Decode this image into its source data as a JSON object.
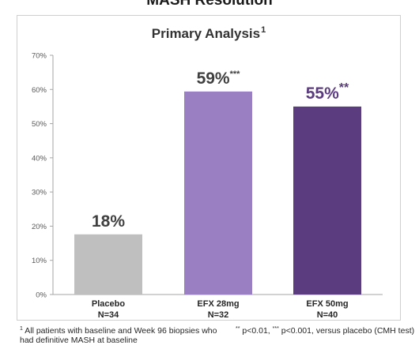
{
  "header": {
    "title": "MASH Resolution"
  },
  "chart_data": {
    "type": "bar",
    "title": "Primary Analysis",
    "title_superscript": "1",
    "categories": [
      "Placebo",
      "EFX 28mg",
      "EFX 50mg"
    ],
    "sublabels": [
      "N=34",
      "N=32",
      "N=40"
    ],
    "values": [
      17.6,
      59.4,
      55.0
    ],
    "data_labels": [
      "18%",
      "59%",
      "55%"
    ],
    "significance": [
      "",
      "***",
      "**"
    ],
    "colors": [
      "#bfbfbf",
      "#9b7fc3",
      "#5b3c7f"
    ],
    "label_colors": [
      "#404040",
      "#404040",
      "#5b3c7f"
    ],
    "ylim": [
      0,
      70
    ],
    "yticks": [
      0,
      10,
      20,
      30,
      40,
      50,
      60,
      70
    ],
    "ytick_labels": [
      "0%",
      "10%",
      "20%",
      "30%",
      "40%",
      "50%",
      "60%",
      "70%"
    ],
    "grid": false
  },
  "footnotes": {
    "left_marker": "1",
    "left_text": "All patients with baseline and Week 96 biopsies who had definitive MASH at baseline",
    "right_marker1": "**",
    "right_text1": "p<0.01,",
    "right_marker2": "***",
    "right_text2": "p<0.001, versus placebo (CMH test)"
  }
}
